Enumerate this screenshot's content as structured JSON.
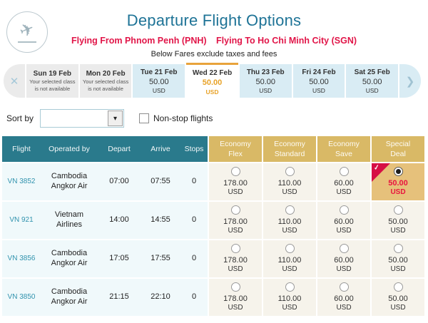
{
  "icons": {
    "plane": "✈",
    "prev": "✕",
    "next": "❯",
    "dropdown_chevron": "▾",
    "check": "✓"
  },
  "colors": {
    "title_teal": "#1E7396",
    "route_red": "#E11548",
    "table_header_teal": "#2A7A8C",
    "fare_header_tan": "#D9B966",
    "selected_fare_tan": "#E6C17B",
    "selected_tab_orange": "#E8A33B",
    "price_red": "#E8143F",
    "available_day_blue": "#D9ECF4",
    "unavailable_day_gray": "#EBEBEB",
    "row_blue": "#F0F9FB",
    "fare_cell_beige": "#F6F3EB"
  },
  "header": {
    "title": "Departure Flight Options",
    "route_from": "Flying From Phnom Penh (PNH)",
    "route_to": "Flying To Ho Chi Minh City (SGN)",
    "note": "Below Fares exclude taxes and fees"
  },
  "date_strip": {
    "days": [
      {
        "label": "Sun 19 Feb",
        "note": "Your selected class is not available",
        "state": "unavailable"
      },
      {
        "label": "Mon 20 Feb",
        "note": "Your selected class is not available",
        "state": "unavailable"
      },
      {
        "label": "Tue 21 Feb",
        "price": "50.00",
        "currency": "USD",
        "state": "available"
      },
      {
        "label": "Wed 22 Feb",
        "price": "50.00",
        "currency": "USD",
        "state": "selected"
      },
      {
        "label": "Thu 23 Feb",
        "price": "50.00",
        "currency": "USD",
        "state": "available"
      },
      {
        "label": "Fri 24 Feb",
        "price": "50.00",
        "currency": "USD",
        "state": "available"
      },
      {
        "label": "Sat 25 Feb",
        "price": "50.00",
        "currency": "USD",
        "state": "available"
      }
    ]
  },
  "controls": {
    "sort_label": "Sort by",
    "sort_value": "",
    "nonstop_label": "Non-stop flights",
    "nonstop_checked": false
  },
  "table": {
    "columns": [
      "Flight",
      "Operated by",
      "Depart",
      "Arrive",
      "Stops"
    ],
    "fare_columns": [
      "Economy Flex",
      "Economy Standard",
      "Economy Save",
      "Special Deal"
    ],
    "rows": [
      {
        "flight": "VN 3852",
        "operated_by": "Cambodia Angkor Air",
        "depart": "07:00",
        "arrive": "07:55",
        "stops": "0",
        "fares": [
          {
            "price": "178.00",
            "currency": "USD",
            "selected": false
          },
          {
            "price": "110.00",
            "currency": "USD",
            "selected": false
          },
          {
            "price": "60.00",
            "currency": "USD",
            "selected": false
          },
          {
            "price": "50.00",
            "currency": "USD",
            "selected": true
          }
        ]
      },
      {
        "flight": "VN 921",
        "operated_by": "Vietnam Airlines",
        "depart": "14:00",
        "arrive": "14:55",
        "stops": "0",
        "fares": [
          {
            "price": "178.00",
            "currency": "USD",
            "selected": false
          },
          {
            "price": "110.00",
            "currency": "USD",
            "selected": false
          },
          {
            "price": "60.00",
            "currency": "USD",
            "selected": false
          },
          {
            "price": "50.00",
            "currency": "USD",
            "selected": false
          }
        ]
      },
      {
        "flight": "VN 3856",
        "operated_by": "Cambodia Angkor Air",
        "depart": "17:05",
        "arrive": "17:55",
        "stops": "0",
        "fares": [
          {
            "price": "178.00",
            "currency": "USD",
            "selected": false
          },
          {
            "price": "110.00",
            "currency": "USD",
            "selected": false
          },
          {
            "price": "60.00",
            "currency": "USD",
            "selected": false
          },
          {
            "price": "50.00",
            "currency": "USD",
            "selected": false
          }
        ]
      },
      {
        "flight": "VN 3850",
        "operated_by": "Cambodia Angkor Air",
        "depart": "21:15",
        "arrive": "22:10",
        "stops": "0",
        "fares": [
          {
            "price": "178.00",
            "currency": "USD",
            "selected": false
          },
          {
            "price": "110.00",
            "currency": "USD",
            "selected": false
          },
          {
            "price": "60.00",
            "currency": "USD",
            "selected": false
          },
          {
            "price": "50.00",
            "currency": "USD",
            "selected": false
          }
        ]
      }
    ]
  }
}
